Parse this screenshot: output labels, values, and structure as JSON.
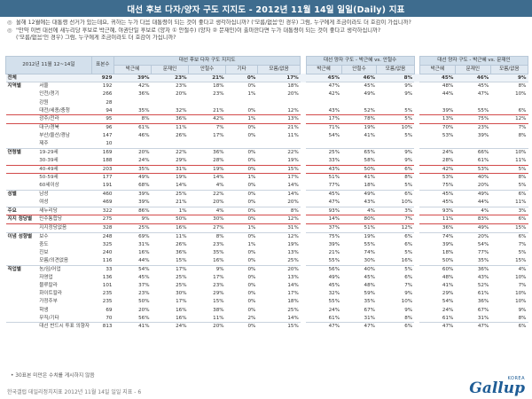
{
  "page": {
    "title": "대선 후보 다자/양자 구도 지지도 - 2012년 11월 14일 일일(Daily) 지표",
    "notes": [
      {
        "symbol": "◎",
        "text": "올해 12월에는 대통령 선거가 있는데요, 귀하는 누가 다음 대통령이 되는 것이 좋다고 생각하십니까? ('모름/없음'인 경우) 그럼, 누구에게 조금이라도 더 호감이 가십니까?"
      },
      {
        "symbol": "◎",
        "text": "\"만약 이번 대선에 새누리당 후보로 박근혜, 야권단일 후보로 (양자 ① 안철수) (양자 ② 문재인)이 출마한다면 누가 대통령이 되는 것이 좋다고 생각하십니까?"
      },
      {
        "symbol": "",
        "text": "('모름/없음'인 경우) 그럼, 누구에게 조금이라도 더 호감이 가십니까?"
      }
    ],
    "footnote": "• 30표본 미만은 수치를 게시하지 않음",
    "footer": "한국갤럽 데일리정치지표 2012년 11월 14일 일일 지표 - 6",
    "logo_korea": "KOREA",
    "logo_word": "Gallup"
  },
  "table": {
    "header_period": "2012년 11월 12~14일",
    "header_sample": "표본수",
    "block_titles": {
      "multi": "대선 후보 다자 구도 지지도",
      "ahn": "대선 양자 구도 - 박근혜 vs. 안철수",
      "moon": "대선 양자 구도 - 박근혜 vs. 문재인"
    },
    "multi_cols": [
      "박근혜",
      "문재인",
      "안철수",
      "기타",
      "모름/없음"
    ],
    "ahn_cols": [
      "박근혜",
      "안철수",
      "모름/없음"
    ],
    "moon_cols": [
      "박근혜",
      "문재인",
      "모름/없음"
    ],
    "total": {
      "label": "전체",
      "n": "929",
      "multi": [
        "39%",
        "23%",
        "21%",
        "0%",
        "17%"
      ],
      "ahn": [
        "45%",
        "46%",
        "8%"
      ],
      "moon": [
        "45%",
        "46%",
        "9%"
      ]
    },
    "sections": [
      {
        "group": "지역별",
        "rows": [
          {
            "label": "서울",
            "n": "192",
            "multi": [
              "42%",
              "23%",
              "18%",
              "0%",
              "18%"
            ],
            "ahn": [
              "47%",
              "45%",
              "9%"
            ],
            "moon": [
              "48%",
              "45%",
              "8%"
            ]
          },
          {
            "label": "인천/경기",
            "n": "266",
            "multi": [
              "36%",
              "20%",
              "23%",
              "1%",
              "20%"
            ],
            "ahn": [
              "42%",
              "49%",
              "9%"
            ],
            "moon": [
              "44%",
              "47%",
              "10%"
            ]
          },
          {
            "label": "강원",
            "n": "28",
            "multi": [
              "",
              "",
              "",
              "",
              ""
            ],
            "ahn": [
              "",
              "",
              ""
            ],
            "moon": [
              "",
              "",
              ""
            ]
          },
          {
            "label": "대전/세종/충청",
            "n": "94",
            "multi": [
              "35%",
              "32%",
              "21%",
              "0%",
              "12%"
            ],
            "ahn": [
              "43%",
              "52%",
              "5%"
            ],
            "moon": [
              "39%",
              "55%",
              "6%"
            ]
          },
          {
            "label": "광주/전라",
            "n": "95",
            "multi": [
              "8%",
              "36%",
              "42%",
              "1%",
              "13%"
            ],
            "ahn": [
              "17%",
              "78%",
              "5%"
            ],
            "moon": [
              "13%",
              "75%",
              "12%"
            ]
          },
          {
            "label": "대구/경북",
            "n": "96",
            "multi": [
              "61%",
              "11%",
              "7%",
              "0%",
              "21%"
            ],
            "ahn": [
              "71%",
              "19%",
              "10%"
            ],
            "moon": [
              "70%",
              "23%",
              "7%"
            ]
          },
          {
            "label": "부산/울산/경남",
            "n": "147",
            "multi": [
              "46%",
              "26%",
              "17%",
              "0%",
              "11%"
            ],
            "ahn": [
              "54%",
              "41%",
              "5%"
            ],
            "moon": [
              "53%",
              "39%",
              "8%"
            ]
          },
          {
            "label": "제주",
            "n": "10",
            "multi": [
              "",
              "",
              "",
              "",
              ""
            ],
            "ahn": [
              "",
              "",
              ""
            ],
            "moon": [
              "",
              "",
              ""
            ]
          }
        ]
      },
      {
        "group": "연령별",
        "rows": [
          {
            "label": "19-29세",
            "n": "169",
            "multi": [
              "20%",
              "22%",
              "36%",
              "0%",
              "22%"
            ],
            "ahn": [
              "25%",
              "65%",
              "9%"
            ],
            "moon": [
              "24%",
              "66%",
              "10%"
            ]
          },
          {
            "label": "30-39세",
            "n": "188",
            "multi": [
              "24%",
              "29%",
              "28%",
              "0%",
              "19%"
            ],
            "ahn": [
              "33%",
              "58%",
              "9%"
            ],
            "moon": [
              "28%",
              "61%",
              "11%"
            ]
          },
          {
            "label": "40-49세",
            "n": "203",
            "multi": [
              "35%",
              "31%",
              "19%",
              "0%",
              "15%"
            ],
            "ahn": [
              "43%",
              "50%",
              "6%"
            ],
            "moon": [
              "42%",
              "53%",
              "5%"
            ]
          },
          {
            "label": "50-59세",
            "n": "177",
            "multi": [
              "49%",
              "19%",
              "14%",
              "1%",
              "17%"
            ],
            "ahn": [
              "51%",
              "41%",
              "8%"
            ],
            "moon": [
              "53%",
              "40%",
              "8%"
            ]
          },
          {
            "label": "60세이상",
            "n": "191",
            "multi": [
              "68%",
              "14%",
              "4%",
              "0%",
              "14%"
            ],
            "ahn": [
              "77%",
              "18%",
              "5%"
            ],
            "moon": [
              "75%",
              "20%",
              "5%"
            ]
          }
        ]
      },
      {
        "group": "성별",
        "rows": [
          {
            "label": "남성",
            "n": "460",
            "multi": [
              "39%",
              "25%",
              "22%",
              "0%",
              "14%"
            ],
            "ahn": [
              "45%",
              "49%",
              "6%"
            ],
            "moon": [
              "45%",
              "49%",
              "6%"
            ]
          },
          {
            "label": "여성",
            "n": "469",
            "multi": [
              "39%",
              "21%",
              "20%",
              "0%",
              "20%"
            ],
            "ahn": [
              "47%",
              "43%",
              "10%"
            ],
            "moon": [
              "45%",
              "44%",
              "11%"
            ]
          }
        ]
      },
      {
        "group": "주요",
        "rows": [
          {
            "label": "새누리당",
            "n": "322",
            "multi": [
              "86%",
              "1%",
              "4%",
              "0%",
              "8%"
            ],
            "ahn": [
              "93%",
              "4%",
              "3%"
            ],
            "moon": [
              "93%",
              "4%",
              "3%"
            ]
          }
        ]
      },
      {
        "group": "지지 정당별",
        "rows": [
          {
            "label": "민주통합당",
            "n": "275",
            "multi": [
              "9%",
              "50%",
              "30%",
              "0%",
              "12%"
            ],
            "ahn": [
              "14%",
              "80%",
              "7%"
            ],
            "moon": [
              "11%",
              "83%",
              "6%"
            ]
          },
          {
            "label": "지지정당없음",
            "n": "328",
            "multi": [
              "25%",
              "16%",
              "27%",
              "1%",
              "31%"
            ],
            "ahn": [
              "37%",
              "51%",
              "12%"
            ],
            "moon": [
              "36%",
              "49%",
              "15%"
            ]
          }
        ]
      },
      {
        "group": "이념 성향별",
        "rows": [
          {
            "label": "보수",
            "n": "248",
            "multi": [
              "69%",
              "11%",
              "8%",
              "0%",
              "12%"
            ],
            "ahn": [
              "75%",
              "19%",
              "6%"
            ],
            "moon": [
              "74%",
              "20%",
              "6%"
            ]
          },
          {
            "label": "중도",
            "n": "325",
            "multi": [
              "31%",
              "26%",
              "23%",
              "1%",
              "19%"
            ],
            "ahn": [
              "39%",
              "55%",
              "6%"
            ],
            "moon": [
              "39%",
              "54%",
              "7%"
            ]
          },
          {
            "label": "진보",
            "n": "240",
            "multi": [
              "16%",
              "36%",
              "35%",
              "0%",
              "13%"
            ],
            "ahn": [
              "21%",
              "74%",
              "5%"
            ],
            "moon": [
              "18%",
              "77%",
              "5%"
            ]
          },
          {
            "label": "모름/의견없음",
            "n": "116",
            "multi": [
              "44%",
              "15%",
              "16%",
              "0%",
              "25%"
            ],
            "ahn": [
              "55%",
              "30%",
              "16%"
            ],
            "moon": [
              "50%",
              "35%",
              "15%"
            ]
          }
        ]
      },
      {
        "group": "직업별",
        "rows": [
          {
            "label": "농/임/어업",
            "n": "33",
            "multi": [
              "54%",
              "17%",
              "9%",
              "0%",
              "20%"
            ],
            "ahn": [
              "56%",
              "40%",
              "5%"
            ],
            "moon": [
              "60%",
              "36%",
              "4%"
            ]
          },
          {
            "label": "자영업",
            "n": "136",
            "multi": [
              "45%",
              "25%",
              "17%",
              "0%",
              "13%"
            ],
            "ahn": [
              "49%",
              "45%",
              "6%"
            ],
            "moon": [
              "48%",
              "43%",
              "10%"
            ]
          },
          {
            "label": "블루칼라",
            "n": "101",
            "multi": [
              "37%",
              "25%",
              "23%",
              "0%",
              "14%"
            ],
            "ahn": [
              "45%",
              "48%",
              "7%"
            ],
            "moon": [
              "41%",
              "52%",
              "7%"
            ]
          },
          {
            "label": "화이트칼라",
            "n": "235",
            "multi": [
              "23%",
              "30%",
              "29%",
              "0%",
              "17%"
            ],
            "ahn": [
              "32%",
              "59%",
              "9%"
            ],
            "moon": [
              "29%",
              "61%",
              "10%"
            ]
          },
          {
            "label": "가정주부",
            "n": "235",
            "multi": [
              "50%",
              "17%",
              "15%",
              "0%",
              "18%"
            ],
            "ahn": [
              "55%",
              "35%",
              "10%"
            ],
            "moon": [
              "54%",
              "36%",
              "10%"
            ]
          },
          {
            "label": "학생",
            "n": "69",
            "multi": [
              "20%",
              "16%",
              "38%",
              "0%",
              "25%"
            ],
            "ahn": [
              "24%",
              "67%",
              "9%"
            ],
            "moon": [
              "24%",
              "67%",
              "9%"
            ]
          },
          {
            "label": "무직/기타",
            "n": "70",
            "multi": [
              "56%",
              "16%",
              "11%",
              "2%",
              "14%"
            ],
            "ahn": [
              "61%",
              "31%",
              "8%"
            ],
            "moon": [
              "61%",
              "31%",
              "8%"
            ]
          }
        ]
      },
      {
        "group": "",
        "rows": [
          {
            "label": "대선 반드시 투표 의향자",
            "n": "813",
            "multi": [
              "41%",
              "24%",
              "20%",
              "0%",
              "15%"
            ],
            "ahn": [
              "47%",
              "47%",
              "6%"
            ],
            "moon": [
              "47%",
              "47%",
              "6%"
            ]
          }
        ]
      }
    ]
  }
}
